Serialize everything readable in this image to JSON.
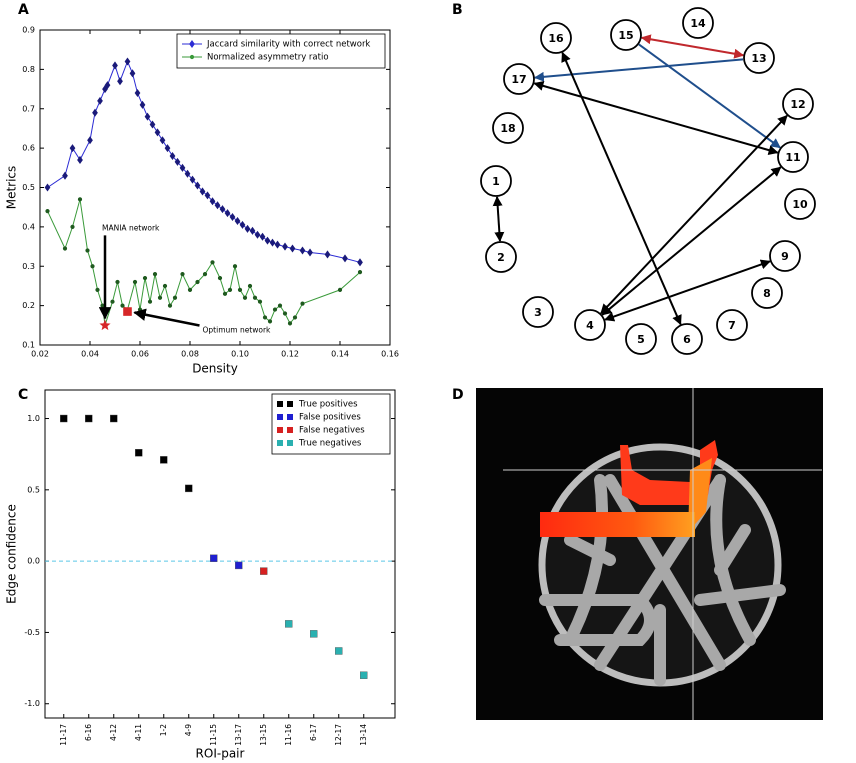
{
  "chart_data": [
    {
      "type": "line",
      "panel_label": "A",
      "xlabel": "Density",
      "ylabel": "Metrics",
      "xlim": [
        0.02,
        0.16
      ],
      "ylim": [
        0.1,
        0.9
      ],
      "xticks": [
        0.02,
        0.04,
        0.06,
        0.08,
        {
          "value": 0.1,
          "label": "0.10"
        },
        0.12,
        0.14,
        0.16
      ],
      "yticks": [
        0.1,
        0.2,
        0.3,
        0.4,
        0.5,
        0.6,
        0.7,
        0.8,
        0.9
      ],
      "legend": "upper right",
      "series": [
        {
          "name": "Jaccard similarity with correct network",
          "color": "#2b2bd4",
          "marker": "diamond",
          "x": [
            0.023,
            0.03,
            0.033,
            0.036,
            0.04,
            0.042,
            0.044,
            0.046,
            0.047,
            0.05,
            0.052,
            0.055,
            0.057,
            0.059,
            0.061,
            0.063,
            0.065,
            0.067,
            0.069,
            0.071,
            0.073,
            0.075,
            0.077,
            0.079,
            0.081,
            0.083,
            0.085,
            0.087,
            0.089,
            0.091,
            0.093,
            0.095,
            0.097,
            0.099,
            0.101,
            0.103,
            0.105,
            0.107,
            0.109,
            0.111,
            0.113,
            0.115,
            0.118,
            0.121,
            0.125,
            0.128,
            0.135,
            0.142,
            0.148
          ],
          "values": [
            0.5,
            0.53,
            0.6,
            0.57,
            0.62,
            0.69,
            0.72,
            0.75,
            0.76,
            0.81,
            0.77,
            0.82,
            0.79,
            0.74,
            0.71,
            0.68,
            0.66,
            0.64,
            0.62,
            0.6,
            0.58,
            0.565,
            0.55,
            0.535,
            0.52,
            0.505,
            0.49,
            0.48,
            0.465,
            0.455,
            0.445,
            0.435,
            0.425,
            0.415,
            0.405,
            0.395,
            0.39,
            0.38,
            0.375,
            0.365,
            0.36,
            0.355,
            0.35,
            0.345,
            0.34,
            0.335,
            0.33,
            0.32,
            0.31
          ]
        },
        {
          "name": "Normalized asymmetry ratio",
          "color": "#3a9a3a",
          "marker": "circle",
          "x": [
            0.023,
            0.03,
            0.033,
            0.036,
            0.039,
            0.041,
            0.043,
            0.045,
            0.046,
            0.049,
            0.051,
            0.053,
            0.055,
            0.058,
            0.06,
            0.062,
            0.064,
            0.066,
            0.068,
            0.07,
            0.072,
            0.074,
            0.077,
            0.08,
            0.083,
            0.086,
            0.089,
            0.092,
            0.094,
            0.096,
            0.098,
            0.1,
            0.102,
            0.104,
            0.106,
            0.108,
            0.11,
            0.112,
            0.114,
            0.116,
            0.118,
            0.12,
            0.122,
            0.125,
            0.14,
            0.148
          ],
          "values": [
            0.44,
            0.345,
            0.4,
            0.47,
            0.34,
            0.3,
            0.24,
            0.2,
            0.15,
            0.21,
            0.26,
            0.2,
            0.19,
            0.26,
            0.19,
            0.27,
            0.21,
            0.28,
            0.22,
            0.25,
            0.2,
            0.22,
            0.28,
            0.24,
            0.26,
            0.28,
            0.31,
            0.27,
            0.23,
            0.24,
            0.3,
            0.24,
            0.22,
            0.25,
            0.22,
            0.21,
            0.17,
            0.16,
            0.19,
            0.2,
            0.18,
            0.155,
            0.17,
            0.205,
            0.24,
            0.285
          ]
        }
      ],
      "annotations": [
        {
          "text": "MANIA network",
          "x": 0.046,
          "y": 0.15,
          "marker": "star",
          "color": "#d62728"
        },
        {
          "text": "Optimum network",
          "x": 0.055,
          "y": 0.185,
          "marker": "square",
          "color": "#d62728"
        }
      ]
    },
    {
      "type": "scatter",
      "panel_label": "C",
      "xlabel": "ROI-pair",
      "ylabel": "Edge confidence",
      "categories": [
        "11-17",
        "6-16",
        "4-12",
        "4-11",
        "1-2",
        "4-9",
        "11-15",
        "13-17",
        "13-15",
        "11-16",
        "6-17",
        "12-17",
        "13-14"
      ],
      "ylim": [
        -1.1,
        1.2
      ],
      "yticks": [
        {
          "value": -1,
          "label": "-1.0"
        },
        {
          "value": -0.5,
          "label": "-0.5"
        },
        {
          "value": 0,
          "label": "0.0"
        },
        {
          "value": 0.5,
          "label": "0.5"
        },
        {
          "value": 1,
          "label": "1.0"
        }
      ],
      "reference_line": 0,
      "reference_color": "#5bc8e8",
      "legend": "upper right",
      "series": [
        {
          "name": "True positives",
          "color": "#000000",
          "values": [
            1,
            1,
            1,
            0.76,
            0.71,
            0.51,
            null,
            null,
            null,
            null,
            null,
            null,
            null
          ]
        },
        {
          "name": "False positives",
          "color": "#1f1fd0",
          "values": [
            null,
            null,
            null,
            null,
            null,
            null,
            0.02,
            -0.03,
            null,
            null,
            null,
            null,
            null
          ]
        },
        {
          "name": "False negatives",
          "color": "#d62020",
          "values": [
            null,
            null,
            null,
            null,
            null,
            null,
            null,
            null,
            -0.07,
            null,
            null,
            null,
            null
          ]
        },
        {
          "name": "True negatives",
          "color": "#2ab0b0",
          "values": [
            null,
            null,
            null,
            null,
            null,
            null,
            null,
            null,
            null,
            -0.44,
            -0.51,
            -0.63,
            -0.8
          ]
        }
      ]
    }
  ],
  "diagram": {
    "panel_label": "B",
    "nodes": [
      "1",
      "2",
      "3",
      "4",
      "5",
      "6",
      "7",
      "8",
      "9",
      "10",
      "11",
      "12",
      "13",
      "14",
      "15",
      "16",
      "17",
      "18"
    ],
    "edges": [
      {
        "from": "15",
        "to": "13",
        "color": "#c0282d",
        "heads": "both"
      },
      {
        "from": "13",
        "to": "17",
        "color": "#1f4e8c",
        "heads": "end"
      },
      {
        "from": "15",
        "to": "11",
        "color": "#1f4e8c",
        "heads": "end"
      },
      {
        "from": "11",
        "to": "17",
        "color": "#000000",
        "heads": "both"
      },
      {
        "from": "6",
        "to": "16",
        "color": "#000000",
        "heads": "both"
      },
      {
        "from": "1",
        "to": "2",
        "color": "#000000",
        "heads": "both"
      },
      {
        "from": "4",
        "to": "12",
        "color": "#000000",
        "heads": "both"
      },
      {
        "from": "4",
        "to": "11",
        "color": "#000000",
        "heads": "both"
      },
      {
        "from": "4",
        "to": "9",
        "color": "#000000",
        "heads": "both"
      }
    ]
  },
  "image": {
    "panel_label": "D"
  }
}
